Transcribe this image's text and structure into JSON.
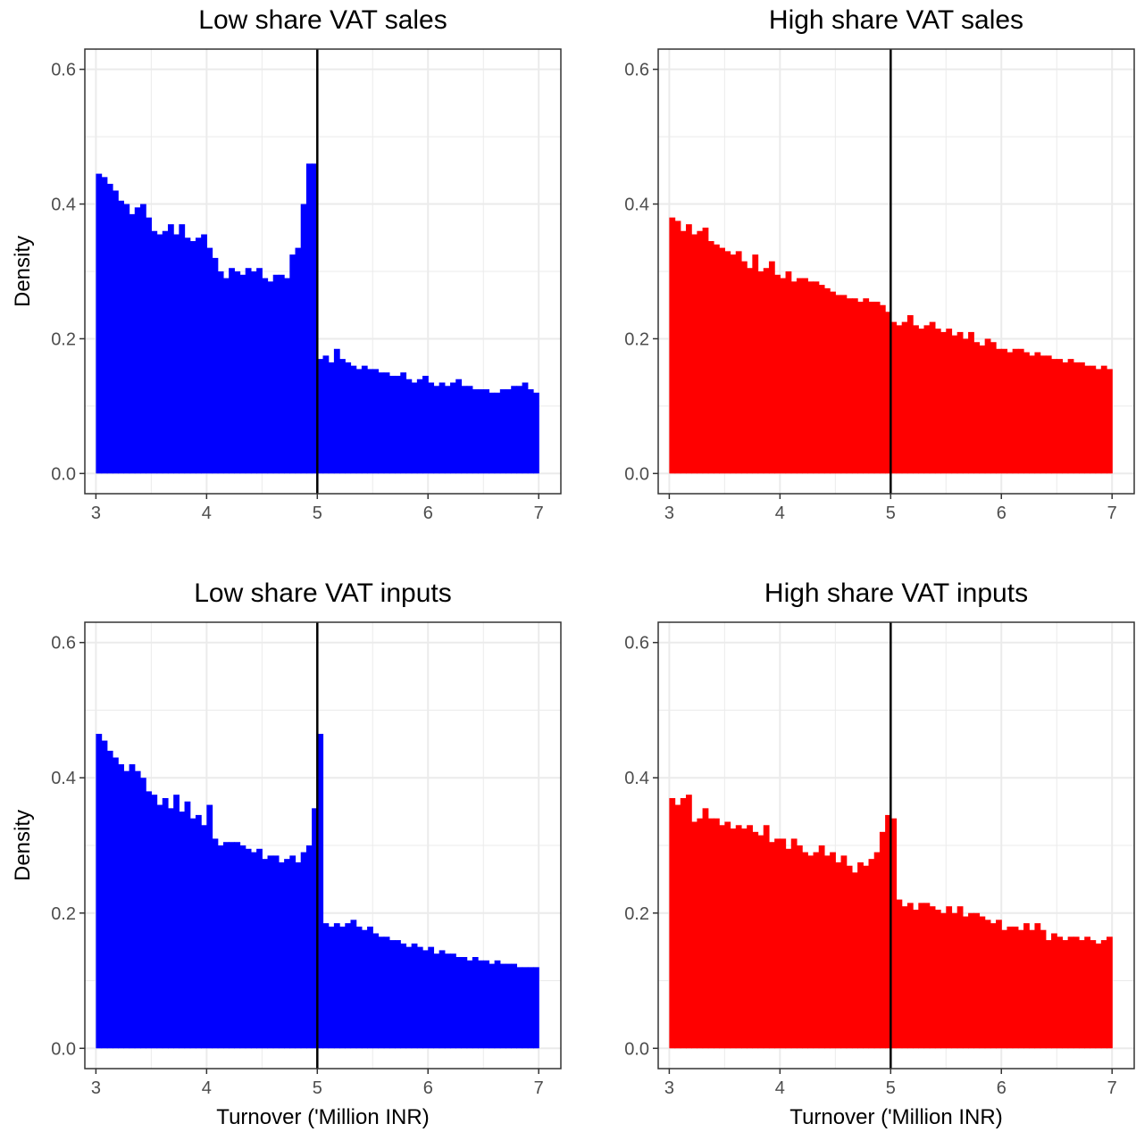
{
  "chart_data": [
    {
      "type": "bar",
      "title": "Low share VAT sales",
      "xlabel": "",
      "ylabel": "Density",
      "xlim": [
        2.9,
        7.2
      ],
      "ylim": [
        -0.03,
        0.63
      ],
      "xticks": [
        3,
        4,
        5,
        6,
        7
      ],
      "yticks": [
        0.0,
        0.2,
        0.4,
        0.6
      ],
      "xtick_labels": [
        "3",
        "4",
        "5",
        "6",
        "7"
      ],
      "ytick_labels": [
        "0.0",
        "0.2",
        "0.4",
        "0.6"
      ],
      "grid": true,
      "threshold": 5,
      "bar_color": "#0000ff",
      "bin_start": 3.0,
      "bin_width": 0.05,
      "values": [
        0.445,
        0.44,
        0.43,
        0.42,
        0.405,
        0.4,
        0.385,
        0.395,
        0.4,
        0.38,
        0.36,
        0.355,
        0.36,
        0.37,
        0.355,
        0.37,
        0.35,
        0.345,
        0.35,
        0.355,
        0.335,
        0.32,
        0.3,
        0.29,
        0.305,
        0.3,
        0.295,
        0.305,
        0.3,
        0.305,
        0.29,
        0.285,
        0.295,
        0.295,
        0.29,
        0.325,
        0.335,
        0.4,
        0.46,
        0.46,
        0.17,
        0.175,
        0.165,
        0.185,
        0.17,
        0.165,
        0.16,
        0.155,
        0.16,
        0.155,
        0.155,
        0.15,
        0.15,
        0.145,
        0.145,
        0.15,
        0.14,
        0.135,
        0.14,
        0.145,
        0.135,
        0.13,
        0.135,
        0.13,
        0.135,
        0.14,
        0.13,
        0.13,
        0.125,
        0.125,
        0.125,
        0.12,
        0.12,
        0.125,
        0.125,
        0.13,
        0.13,
        0.135,
        0.125,
        0.12
      ]
    },
    {
      "type": "bar",
      "title": "High share VAT sales",
      "xlabel": "",
      "ylabel": "",
      "xlim": [
        2.9,
        7.2
      ],
      "ylim": [
        -0.03,
        0.63
      ],
      "xticks": [
        3,
        4,
        5,
        6,
        7
      ],
      "yticks": [
        0.0,
        0.2,
        0.4,
        0.6
      ],
      "xtick_labels": [
        "3",
        "4",
        "5",
        "6",
        "7"
      ],
      "ytick_labels": [
        "0.0",
        "0.2",
        "0.4",
        "0.6"
      ],
      "grid": true,
      "threshold": 5,
      "bar_color": "#ff0000",
      "bin_start": 3.0,
      "bin_width": 0.05,
      "values": [
        0.38,
        0.375,
        0.36,
        0.37,
        0.355,
        0.36,
        0.365,
        0.345,
        0.34,
        0.335,
        0.33,
        0.325,
        0.33,
        0.315,
        0.305,
        0.325,
        0.3,
        0.305,
        0.315,
        0.295,
        0.29,
        0.3,
        0.285,
        0.29,
        0.29,
        0.285,
        0.285,
        0.28,
        0.275,
        0.27,
        0.265,
        0.265,
        0.26,
        0.26,
        0.255,
        0.26,
        0.255,
        0.255,
        0.25,
        0.24,
        0.225,
        0.22,
        0.225,
        0.235,
        0.22,
        0.215,
        0.22,
        0.225,
        0.215,
        0.21,
        0.215,
        0.205,
        0.21,
        0.2,
        0.21,
        0.195,
        0.19,
        0.2,
        0.195,
        0.185,
        0.185,
        0.18,
        0.185,
        0.185,
        0.18,
        0.175,
        0.18,
        0.175,
        0.175,
        0.17,
        0.17,
        0.165,
        0.17,
        0.165,
        0.165,
        0.16,
        0.16,
        0.155,
        0.16,
        0.155
      ]
    },
    {
      "type": "bar",
      "title": "Low share VAT inputs",
      "xlabel": "Turnover ('Million INR)",
      "ylabel": "Density",
      "xlim": [
        2.9,
        7.2
      ],
      "ylim": [
        -0.03,
        0.63
      ],
      "xticks": [
        3,
        4,
        5,
        6,
        7
      ],
      "yticks": [
        0.0,
        0.2,
        0.4,
        0.6
      ],
      "xtick_labels": [
        "3",
        "4",
        "5",
        "6",
        "7"
      ],
      "ytick_labels": [
        "0.0",
        "0.2",
        "0.4",
        "0.6"
      ],
      "grid": true,
      "threshold": 5,
      "bar_color": "#0000ff",
      "bin_start": 3.0,
      "bin_width": 0.05,
      "values": [
        0.465,
        0.455,
        0.44,
        0.43,
        0.42,
        0.41,
        0.42,
        0.41,
        0.4,
        0.38,
        0.375,
        0.36,
        0.37,
        0.355,
        0.375,
        0.35,
        0.365,
        0.34,
        0.345,
        0.33,
        0.36,
        0.31,
        0.3,
        0.305,
        0.305,
        0.305,
        0.3,
        0.295,
        0.29,
        0.295,
        0.28,
        0.285,
        0.285,
        0.275,
        0.28,
        0.285,
        0.275,
        0.29,
        0.3,
        0.355,
        0.465,
        0.185,
        0.18,
        0.185,
        0.18,
        0.185,
        0.19,
        0.18,
        0.175,
        0.18,
        0.17,
        0.165,
        0.165,
        0.16,
        0.16,
        0.155,
        0.15,
        0.155,
        0.15,
        0.145,
        0.15,
        0.14,
        0.145,
        0.14,
        0.14,
        0.135,
        0.135,
        0.13,
        0.135,
        0.13,
        0.13,
        0.125,
        0.13,
        0.125,
        0.125,
        0.125,
        0.12,
        0.12,
        0.12,
        0.12
      ]
    },
    {
      "type": "bar",
      "title": "High share VAT inputs",
      "xlabel": "Turnover ('Million INR)",
      "ylabel": "",
      "xlim": [
        2.9,
        7.2
      ],
      "ylim": [
        -0.03,
        0.63
      ],
      "xticks": [
        3,
        4,
        5,
        6,
        7
      ],
      "yticks": [
        0.0,
        0.2,
        0.4,
        0.6
      ],
      "xtick_labels": [
        "3",
        "4",
        "5",
        "6",
        "7"
      ],
      "ytick_labels": [
        "0.0",
        "0.2",
        "0.4",
        "0.6"
      ],
      "grid": true,
      "threshold": 5,
      "bar_color": "#ff0000",
      "bin_start": 3.0,
      "bin_width": 0.05,
      "values": [
        0.37,
        0.36,
        0.37,
        0.375,
        0.335,
        0.34,
        0.355,
        0.34,
        0.34,
        0.33,
        0.335,
        0.325,
        0.33,
        0.325,
        0.33,
        0.32,
        0.315,
        0.33,
        0.305,
        0.31,
        0.31,
        0.295,
        0.31,
        0.3,
        0.29,
        0.285,
        0.29,
        0.3,
        0.285,
        0.29,
        0.275,
        0.285,
        0.27,
        0.26,
        0.275,
        0.27,
        0.28,
        0.29,
        0.32,
        0.345,
        0.34,
        0.22,
        0.21,
        0.215,
        0.205,
        0.215,
        0.215,
        0.21,
        0.205,
        0.2,
        0.21,
        0.2,
        0.21,
        0.195,
        0.2,
        0.2,
        0.195,
        0.19,
        0.185,
        0.19,
        0.175,
        0.18,
        0.18,
        0.175,
        0.185,
        0.175,
        0.185,
        0.175,
        0.16,
        0.17,
        0.165,
        0.16,
        0.165,
        0.165,
        0.16,
        0.165,
        0.16,
        0.155,
        0.16,
        0.165
      ]
    }
  ]
}
